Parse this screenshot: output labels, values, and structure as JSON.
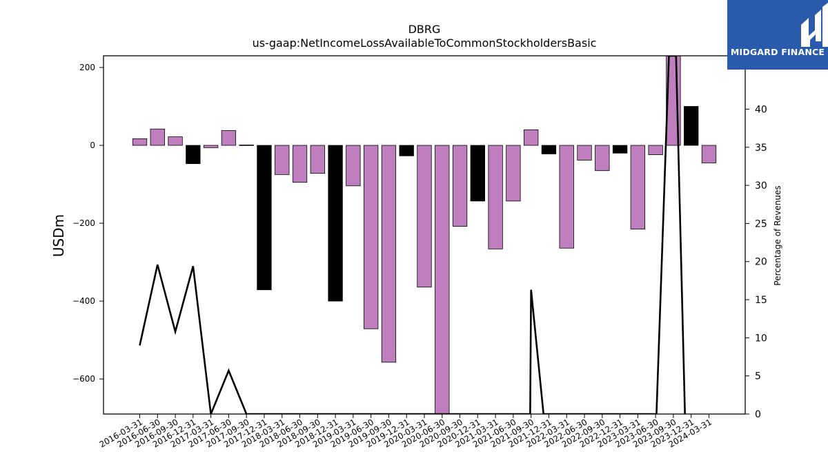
{
  "chart_data": {
    "type": "bar",
    "title": "DBRG",
    "subtitle": "us-gaap:NetIncomeLossAvailableToCommonStockholdersBasic",
    "ylabel": "USDm",
    "y2label": "Percentage of Revenues",
    "ylim": [
      -690,
      230
    ],
    "y2lim": [
      0,
      47
    ],
    "yticks": [
      200,
      0,
      -200,
      -400,
      -600
    ],
    "y2ticks": [
      0,
      5,
      10,
      15,
      20,
      25,
      30,
      35,
      40
    ],
    "categories": [
      "2016-03-31",
      "2016-06-30",
      "2016-09-30",
      "2016-12-31",
      "2017-03-31",
      "2017-06-30",
      "2017-09-30",
      "2017-12-31",
      "2018-03-31",
      "2018-06-30",
      "2018-09-30",
      "2018-12-31",
      "2019-03-31",
      "2019-06-30",
      "2019-09-30",
      "2019-12-31",
      "2020-03-31",
      "2020-06-30",
      "2020-09-30",
      "2020-12-31",
      "2021-03-31",
      "2021-06-30",
      "2021-09-30",
      "2021-12-31",
      "2022-03-31",
      "2022-06-30",
      "2022-09-30",
      "2022-12-31",
      "2023-03-31",
      "2023-06-30",
      "2023-09-30",
      "2023-12-31",
      "2024-03-31"
    ],
    "series": [
      {
        "kind": "bar",
        "values": [
          17,
          42,
          22,
          -47,
          -6,
          38,
          1,
          -371,
          -75,
          -95,
          -72,
          -400,
          -104,
          -471,
          -557,
          -27,
          -364,
          -690,
          -208,
          -143,
          -266,
          -143,
          40,
          -22,
          -264,
          -38,
          -65,
          -20,
          -215,
          -24,
          230,
          100,
          -45
        ],
        "colors": [
          "#bf7fbf",
          "#bf7fbf",
          "#bf7fbf",
          "#000000",
          "#bf7fbf",
          "#bf7fbf",
          "#000000",
          "#000000",
          "#bf7fbf",
          "#bf7fbf",
          "#bf7fbf",
          "#000000",
          "#bf7fbf",
          "#bf7fbf",
          "#bf7fbf",
          "#000000",
          "#bf7fbf",
          "#bf7fbf",
          "#bf7fbf",
          "#000000",
          "#bf7fbf",
          "#bf7fbf",
          "#bf7fbf",
          "#000000",
          "#bf7fbf",
          "#bf7fbf",
          "#bf7fbf",
          "#000000",
          "#bf7fbf",
          "#bf7fbf",
          "#bf7fbf",
          "#000000",
          "#bf7fbf"
        ]
      },
      {
        "kind": "line",
        "axis": "y2",
        "color": "#000000",
        "points": [
          [
            0,
            9.0
          ],
          [
            1,
            19.6
          ],
          [
            2,
            10.8
          ],
          [
            3,
            19.4
          ],
          [
            4.0,
            0
          ],
          [
            5,
            5.7
          ],
          [
            6,
            0
          ],
          [
            21.95,
            0
          ],
          [
            22,
            16.3
          ],
          [
            22.7,
            0
          ],
          [
            29.05,
            0
          ],
          [
            29.75,
            47
          ],
          [
            30.15,
            47
          ],
          [
            30.65,
            0
          ]
        ]
      }
    ],
    "legend": "none",
    "grid": false
  },
  "brand": {
    "name": "MIDGARD FINANCE",
    "bg_color": "#2a5aab",
    "icon": "midgard-m-logo-icon"
  }
}
